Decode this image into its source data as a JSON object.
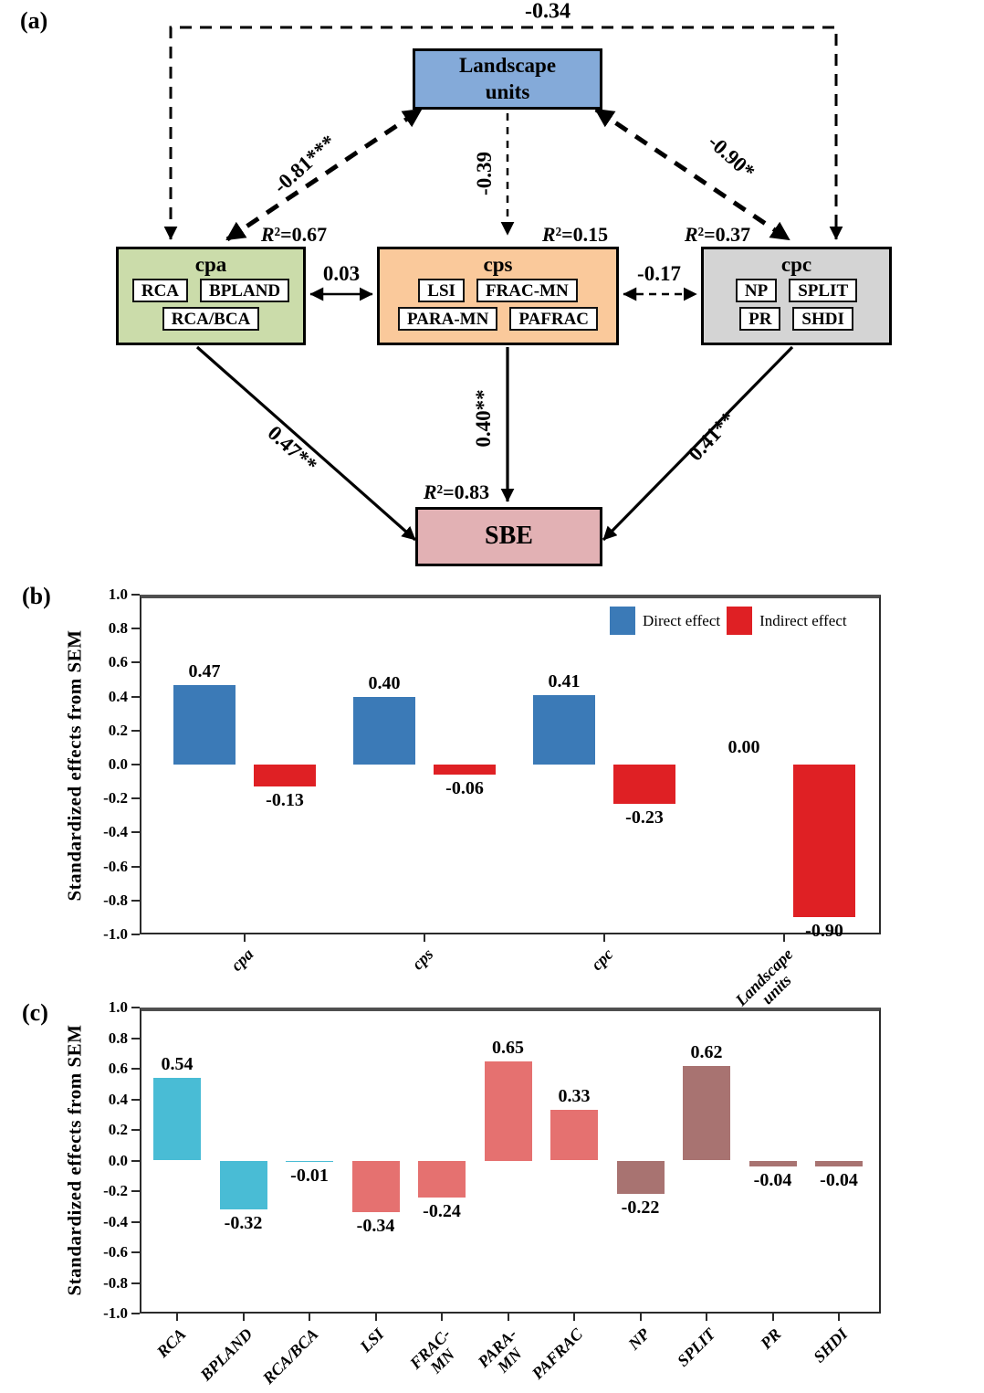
{
  "figure": {
    "panel_a_label": "(a)",
    "panel_b_label": "(b)",
    "panel_c_label": "(c)"
  },
  "sem": {
    "colors": {
      "landscape": "#84aad9",
      "cpa": "#cbdcaa",
      "cps": "#fac99b",
      "cpc": "#d4d4d4",
      "sbe": "#e2b1b4"
    },
    "landscape": {
      "line1": "Landscape",
      "line2": "units"
    },
    "cpa": {
      "title": "cpa",
      "r2_prefix": "R",
      "r2_rest": "²=0.67",
      "rows": [
        [
          "RCA",
          "BPLAND"
        ],
        [
          "RCA/BCA"
        ]
      ]
    },
    "cps": {
      "title": "cps",
      "r2_prefix": "R",
      "r2_rest": "²=0.15",
      "rows": [
        [
          "LSI",
          "FRAC-MN"
        ],
        [
          "PARA-MN",
          "PAFRAC"
        ]
      ]
    },
    "cpc": {
      "title": "cpc",
      "r2_prefix": "R",
      "r2_rest": "²=0.37",
      "rows": [
        [
          "NP",
          "SPLIT"
        ],
        [
          "PR",
          "SHDI"
        ]
      ]
    },
    "sbe": {
      "title": "SBE",
      "r2_prefix": "R",
      "r2_rest": "²=0.83"
    },
    "paths": {
      "cov_top": "-0.34",
      "lu_cpa": "-0.81***",
      "lu_cps": "-0.39",
      "lu_cpc": "-0.90*",
      "cpa_cps": "0.03",
      "cps_cpc": "-0.17",
      "cpa_sbe": "0.47**",
      "cps_sbe": "0.40**",
      "cpc_sbe": "0.41**"
    }
  },
  "chart_data": [
    {
      "id": "b",
      "type": "bar",
      "ylabel": "Standardized effects from SEM",
      "ylim": [
        -1.0,
        1.0
      ],
      "ytick_step": 0.2,
      "grid": false,
      "legend_position": "top-right",
      "categories": [
        "cpa",
        "cps",
        "cpc",
        "Landscape\nunits"
      ],
      "series": [
        {
          "name": "Direct effect",
          "color": "#3b7ab7",
          "values": [
            0.47,
            0.4,
            0.41,
            0.0
          ]
        },
        {
          "name": "Indirect effect",
          "color": "#df2024",
          "values": [
            -0.13,
            -0.06,
            -0.23,
            -0.9
          ]
        }
      ]
    },
    {
      "id": "c",
      "type": "bar",
      "ylabel": "Standardized effects from SEM",
      "ylim": [
        -1.0,
        1.0
      ],
      "ytick_step": 0.2,
      "grid": false,
      "categories": [
        "RCA",
        "BPLAND",
        "RCA/BCA",
        "LSI",
        "FRAC-MN",
        "PARA-MN",
        "PAFRAC",
        "NP",
        "SPLIT",
        "PR",
        "SHDI"
      ],
      "values": [
        0.54,
        -0.32,
        -0.01,
        -0.34,
        -0.24,
        0.65,
        0.33,
        -0.22,
        0.62,
        -0.04,
        -0.04
      ],
      "bar_colors": [
        "#49bcd5",
        "#49bcd5",
        "#49bcd5",
        "#e57170",
        "#e57170",
        "#e57170",
        "#e57170",
        "#a87371",
        "#a87371",
        "#a87371",
        "#a87371"
      ]
    }
  ]
}
